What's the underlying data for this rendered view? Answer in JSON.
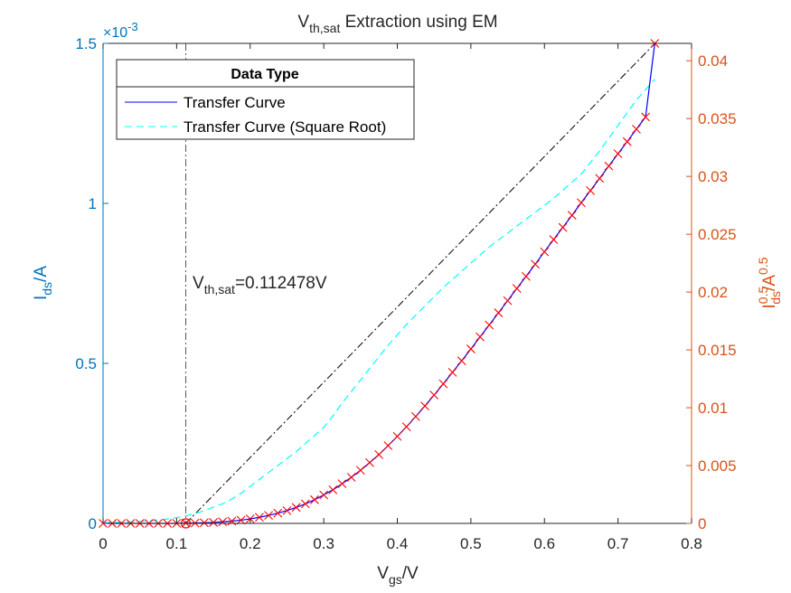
{
  "chart_data": {
    "type": "line",
    "title": {
      "main": "V",
      "sub": "th,sat",
      "rest": " Extraction using EM"
    },
    "xlabel": {
      "main": "V",
      "sub": "gs",
      "rest": "/V"
    },
    "ylabel_left": {
      "main": "I",
      "sub": "ds",
      "rest": "/A"
    },
    "ylabel_right": {
      "main": "I",
      "sup1": "0.5",
      "sub": "ds",
      "mid": "/A",
      "sup2": "0.5"
    },
    "xlim": [
      0,
      0.8
    ],
    "ylim_left": [
      0,
      1.5
    ],
    "ylim_right": [
      0,
      0.0415
    ],
    "x_ticks": [
      "0",
      "0.1",
      "0.2",
      "0.3",
      "0.4",
      "0.5",
      "0.6",
      "0.7",
      "0.8"
    ],
    "y_left_ticks": [
      "0",
      "0.5",
      "1",
      "1.5"
    ],
    "y_left_exponent": {
      "base": "×10",
      "exp": "-3"
    },
    "y_right_ticks": [
      "0",
      "0.005",
      "0.01",
      "0.015",
      "0.02",
      "0.025",
      "0.03",
      "0.035",
      "0.04"
    ],
    "colors": {
      "left_axis": "#0072BD",
      "right_axis": "#D95319",
      "transfer_curve": "#0000FF",
      "sqrt_curve": "#00FFFF",
      "markers": "#FF0000",
      "fit_line": "#000000",
      "vth_line": "#555555"
    },
    "legend": {
      "title": "Data Type",
      "position": "top-left",
      "entries": [
        "Transfer Curve",
        "Transfer Curve (Square Root)"
      ]
    },
    "annotation": {
      "main": "V",
      "sub": "th,sat",
      "rest": "=0.112478V"
    },
    "vth_value": 0.112478,
    "series": [
      {
        "name": "Transfer Curve",
        "axis": "left",
        "style": "solid",
        "markers": "x",
        "x": [
          0,
          0.0125,
          0.025,
          0.0375,
          0.05,
          0.0625,
          0.075,
          0.0875,
          0.1,
          0.1125,
          0.125,
          0.1375,
          0.15,
          0.1625,
          0.175,
          0.1875,
          0.2,
          0.2125,
          0.225,
          0.2375,
          0.25,
          0.2625,
          0.275,
          0.2875,
          0.3,
          0.3125,
          0.325,
          0.3375,
          0.35,
          0.3625,
          0.375,
          0.3875,
          0.4,
          0.4125,
          0.425,
          0.4375,
          0.45,
          0.4625,
          0.475,
          0.4875,
          0.5,
          0.5125,
          0.525,
          0.5375,
          0.55,
          0.5625,
          0.575,
          0.5875,
          0.6,
          0.6125,
          0.625,
          0.6375,
          0.65,
          0.6625,
          0.675,
          0.6875,
          0.7,
          0.7125,
          0.725,
          0.7375,
          0.75
        ],
        "y": [
          0.0,
          0.0,
          0.0,
          0.0,
          0.0,
          0.0,
          0.0,
          0.0,
          0.0,
          1e-06,
          1e-06,
          2e-06,
          3e-06,
          5e-06,
          7e-06,
          1e-05,
          1.4e-05,
          1.9e-05,
          2.5e-05,
          3.2e-05,
          4e-05,
          5e-05,
          6.1e-05,
          7.4e-05,
          8.9e-05,
          0.000105,
          0.000124,
          0.000144,
          0.000166,
          0.00019,
          0.000215,
          0.000243,
          0.000272,
          0.000302,
          0.000334,
          0.000367,
          0.000401,
          0.000436,
          0.000472,
          0.000508,
          0.000545,
          0.000583,
          0.00062,
          0.000658,
          0.000696,
          0.000734,
          0.000772,
          0.00081,
          0.000849,
          0.000887,
          0.000925,
          0.000963,
          0.001002,
          0.00104,
          0.001078,
          0.001117,
          0.001155,
          0.001193,
          0.001232,
          0.00127,
          0.0015
        ]
      },
      {
        "name": "Transfer Curve (Square Root)",
        "axis": "right",
        "style": "dashed",
        "x": [
          0,
          0.0125,
          0.025,
          0.0375,
          0.05,
          0.0625,
          0.075,
          0.0875,
          0.1,
          0.1125,
          0.125,
          0.1375,
          0.15,
          0.1625,
          0.175,
          0.1875,
          0.2,
          0.2125,
          0.225,
          0.2375,
          0.25,
          0.2625,
          0.275,
          0.2875,
          0.3,
          0.3125,
          0.325,
          0.3375,
          0.35,
          0.3625,
          0.375,
          0.3875,
          0.4,
          0.4125,
          0.425,
          0.4375,
          0.45,
          0.4625,
          0.475,
          0.4875,
          0.5,
          0.5125,
          0.525,
          0.5375,
          0.55,
          0.5625,
          0.575,
          0.5875,
          0.6,
          0.6125,
          0.625,
          0.6375,
          0.65,
          0.6625,
          0.675,
          0.6875,
          0.7,
          0.7125,
          0.725,
          0.7375,
          0.75
        ],
        "y": [
          6e-05,
          8e-05,
          0.0001,
          0.00013,
          0.00017,
          0.00022,
          0.00029,
          0.00038,
          0.0005,
          0.00065,
          0.00085,
          0.0011,
          0.0014,
          0.0017,
          0.0021,
          0.0026,
          0.0032,
          0.0038,
          0.0044,
          0.005,
          0.0056,
          0.0062,
          0.0069,
          0.0076,
          0.0083,
          0.0093,
          0.0104,
          0.0114,
          0.0124,
          0.0134,
          0.0144,
          0.0154,
          0.0163,
          0.0172,
          0.018,
          0.0188,
          0.0196,
          0.0204,
          0.0211,
          0.0218,
          0.0225,
          0.0232,
          0.0239,
          0.0245,
          0.0251,
          0.0257,
          0.0263,
          0.0269,
          0.0275,
          0.0281,
          0.0288,
          0.0295,
          0.0302,
          0.0312,
          0.0322,
          0.0333,
          0.0344,
          0.0355,
          0.0366,
          0.0375,
          0.0384
        ]
      },
      {
        "name": "",
        "axis": "right",
        "style": "dash-dot",
        "x": [
          0.112478,
          0.75
        ],
        "y": [
          0,
          0.04148
        ]
      }
    ]
  }
}
